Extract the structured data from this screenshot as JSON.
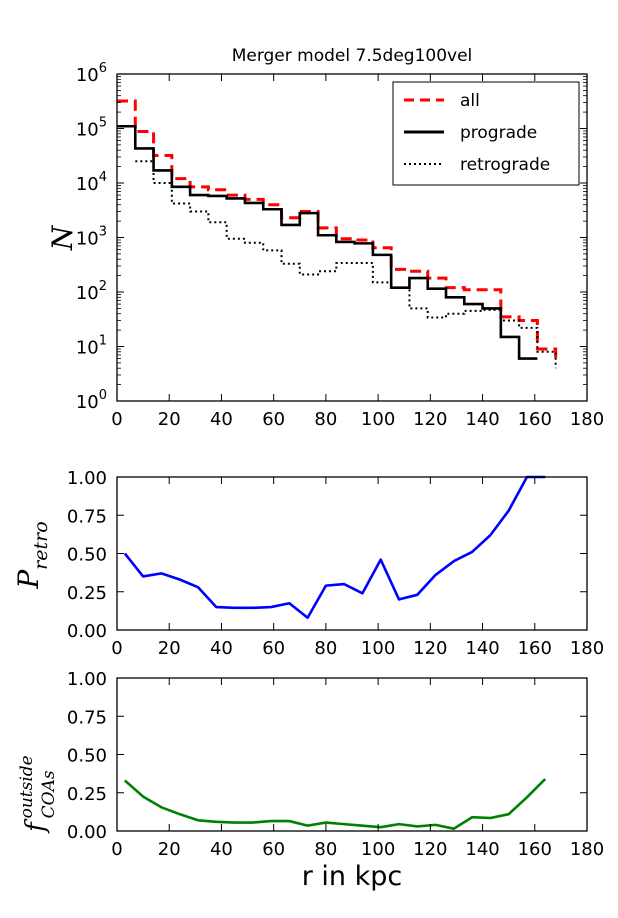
{
  "chart_data": [
    {
      "id": "histogram",
      "type": "line",
      "title": "Merger model 7.5deg100vel",
      "xlabel": "",
      "ylabel": "N",
      "xlim": [
        0,
        180
      ],
      "ylim": [
        1,
        1000000
      ],
      "yscale": "log",
      "xticks": [
        "0",
        "20",
        "40",
        "60",
        "80",
        "100",
        "120",
        "140",
        "160",
        "180"
      ],
      "yticks": [
        {
          "base": "10",
          "exp": "0"
        },
        {
          "base": "10",
          "exp": "1"
        },
        {
          "base": "10",
          "exp": "2"
        },
        {
          "base": "10",
          "exp": "3"
        },
        {
          "base": "10",
          "exp": "4"
        },
        {
          "base": "10",
          "exp": "5"
        },
        {
          "base": "10",
          "exp": "6"
        }
      ],
      "legend": {
        "position": "top-right",
        "entries": [
          "all",
          "prograde",
          "retrograde"
        ]
      },
      "bin_edges": [
        0,
        7,
        14,
        21,
        28,
        35,
        42,
        49,
        56,
        63,
        70,
        77,
        84,
        91,
        98,
        105,
        112,
        119,
        126,
        133,
        140,
        147,
        154,
        161,
        168
      ],
      "series": [
        {
          "name": "all",
          "color": "#ff0000",
          "style": "dashed",
          "values": [
            320000,
            88000,
            32000,
            12000,
            8500,
            7500,
            6000,
            5000,
            4000,
            2300,
            3000,
            1500,
            950,
            900,
            650,
            260,
            240,
            180,
            120,
            110,
            110,
            35,
            30,
            9,
            6
          ]
        },
        {
          "name": "prograde",
          "color": "#000000",
          "style": "solid",
          "values": [
            110000,
            43000,
            17000,
            8500,
            6000,
            5800,
            5200,
            4300,
            3300,
            1700,
            2800,
            1100,
            830,
            780,
            480,
            120,
            180,
            115,
            80,
            60,
            50,
            15,
            6,
            null,
            null
          ]
        },
        {
          "name": "retrograde",
          "color": "#000000",
          "style": "dotted",
          "values": [
            null,
            25000,
            10000,
            4200,
            3000,
            1900,
            950,
            800,
            580,
            330,
            210,
            240,
            340,
            340,
            150,
            120,
            50,
            34,
            40,
            45,
            47,
            30,
            22,
            8,
            4
          ]
        }
      ]
    },
    {
      "id": "p-retro",
      "type": "line",
      "title": "",
      "xlabel": "",
      "ylabel": {
        "main": "P",
        "sub": "retro"
      },
      "xlim": [
        0,
        180
      ],
      "ylim": [
        0,
        1
      ],
      "xticks": [
        "0",
        "20",
        "40",
        "60",
        "80",
        "100",
        "120",
        "140",
        "160",
        "180"
      ],
      "yticks": [
        "0.00",
        "0.25",
        "0.50",
        "0.75",
        "1.00"
      ],
      "series": [
        {
          "name": "P_retro",
          "color": "#0000ff",
          "x": [
            3,
            10,
            17,
            24,
            31,
            38,
            45,
            52,
            59,
            66,
            73,
            80,
            87,
            94,
            101,
            108,
            115,
            122,
            129,
            136,
            143,
            150,
            157,
            164
          ],
          "y": [
            0.5,
            0.35,
            0.37,
            0.33,
            0.28,
            0.15,
            0.145,
            0.145,
            0.15,
            0.175,
            0.08,
            0.29,
            0.3,
            0.24,
            0.46,
            0.2,
            0.23,
            0.36,
            0.45,
            0.51,
            0.62,
            0.78,
            1.0,
            1.0
          ]
        }
      ]
    },
    {
      "id": "f-outside",
      "type": "line",
      "title": "",
      "xlabel": "r in kpc",
      "ylabel": {
        "main": "f",
        "sub": "COAs",
        "sup": "outside"
      },
      "xlim": [
        0,
        180
      ],
      "ylim": [
        0,
        1
      ],
      "xticks": [
        "0",
        "20",
        "40",
        "60",
        "80",
        "100",
        "120",
        "140",
        "160",
        "180"
      ],
      "yticks": [
        "0.00",
        "0.25",
        "0.50",
        "0.75",
        "1.00"
      ],
      "series": [
        {
          "name": "f_outside",
          "color": "#008000",
          "x": [
            3,
            10,
            17,
            24,
            31,
            38,
            45,
            52,
            59,
            66,
            73,
            80,
            87,
            94,
            101,
            108,
            115,
            122,
            129,
            136,
            143,
            150,
            157,
            164
          ],
          "y": [
            0.33,
            0.225,
            0.155,
            0.11,
            0.07,
            0.06,
            0.055,
            0.055,
            0.065,
            0.065,
            0.035,
            0.055,
            0.045,
            0.035,
            0.025,
            0.045,
            0.03,
            0.04,
            0.015,
            0.09,
            0.085,
            0.11,
            0.22,
            0.34
          ]
        }
      ]
    }
  ]
}
